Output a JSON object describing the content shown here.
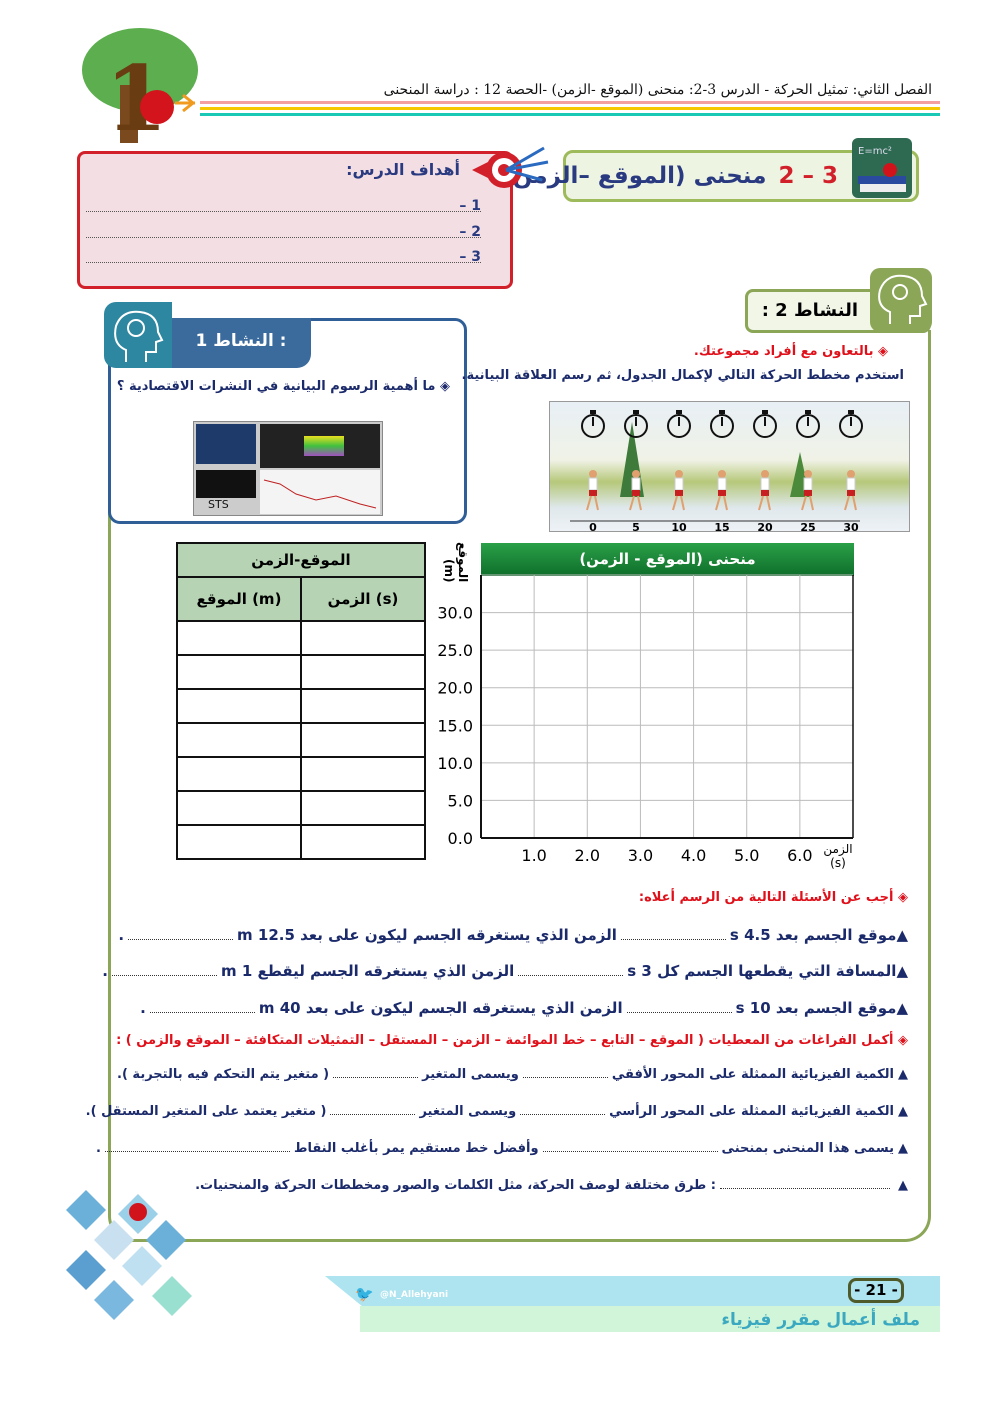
{
  "header": {
    "breadcrumb": "الفصل الثاني: تمثيل الحركة  - الدرس 3-2: منحنى (الموقع -الزمن)  -الحصة 12 : دراسة المنحنى"
  },
  "title": {
    "number": "3 – 2",
    "text": "منحنى (الموقع –الزمن)"
  },
  "goals": {
    "heading": "أهداف الدرس:",
    "items": [
      "1 –",
      "2 –",
      "3 –"
    ]
  },
  "activity1": {
    "label": "النشاط 1 :",
    "question": "◈ ما أهمية الرسوم البيانية في النشرات الاقتصادية ؟",
    "image_logo": "STS"
  },
  "activity2": {
    "label": "النشاط 2 :",
    "instruction_red": "◈ بالتعاون مع أفراد مجموعتك.",
    "instruction": "استخدم مخطط الحركة التالي لإكمال الجدول، ثم رسم العلاقة البيانية.",
    "motion_scale": [
      "0",
      "5",
      "10",
      "15",
      "20",
      "25",
      "30"
    ]
  },
  "table": {
    "title": "الموقع-الزمن",
    "columns": [
      "الزمن (s)",
      "الموقع (m)"
    ],
    "rows": 7
  },
  "chart_data": {
    "type": "line",
    "title": "منحنى (الموقع - الزمن)",
    "xlabel": "الزمن (s)",
    "ylabel": "الموقع (m)",
    "x_ticks": [
      "1.0",
      "2.0",
      "3.0",
      "4.0",
      "5.0",
      "6.0"
    ],
    "y_ticks": [
      "30.0",
      "25.0",
      "20.0",
      "15.0",
      "10.0",
      "5.0",
      "0.0"
    ],
    "xlim": [
      0,
      7
    ],
    "ylim": [
      0,
      35
    ],
    "grid": true,
    "series": []
  },
  "questions": {
    "heading": "◈ أجب عن الأسئلة التالية من الرسم أعلاه:",
    "items": [
      {
        "a": "موقع الجسم بعد 4.5 s",
        "b": "الزمن الذي يستغرقه الجسم ليكون على بعد 12.5 m"
      },
      {
        "a": "المسافة التي يقطعها الجسم كل 3 s",
        "b": "الزمن الذي يستغرقه الجسم ليقطع  1 m"
      },
      {
        "a": "موقع الجسم بعد 10 s",
        "b": "الزمن الذي يستغرقه الجسم ليكون على بعد 40 m"
      }
    ],
    "fill_heading": "◈ أكمل الفراغات من المعطيات ( الموقع – التابع – خط الموائمة – الزمن – المستقل – التمثيلات المتكافئة – الموقع والزمن ) :",
    "fill": [
      {
        "a": "الكمية الفيزيائية الممثلة على المحور الأفقي",
        "b": "ويسمى المتغير",
        "c": "( متغير يتم التحكم فيه بالتجربة )."
      },
      {
        "a": "الكمية الفيزيائية الممثلة على المحور الرأسي",
        "b": "ويسمى المتغير",
        "c": "( متغير يعتمد على المتغير المستقل )."
      },
      {
        "a": "يسمى هذا المنحنى بمنحنى",
        "b": "وأفضل خط مستقيم يمر بأغلب النقاط",
        "c": "."
      },
      {
        "a": "",
        "b": ": طرق مختلفة لوصف الحركة، مثل الكلمات والصور ومخططات الحركة والمنحنيات.",
        "c": ""
      }
    ]
  },
  "footer": {
    "twitter": "@N_Allehyani",
    "page": "- 21 -",
    "course": "ملف أعمال مقرر فيزياء"
  },
  "colors": {
    "red": "#d1202a",
    "navy": "#1b2a6a",
    "green": "#8aa656",
    "chart_green": "#1a8c3a",
    "blue": "#3b6a9c"
  }
}
